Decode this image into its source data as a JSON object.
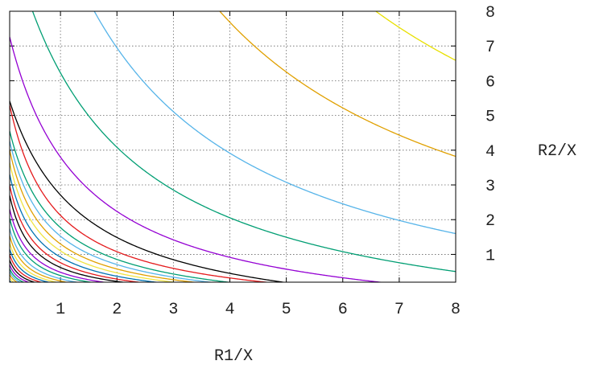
{
  "chart_data": {
    "type": "line",
    "title": "",
    "xlabel": "R1/X",
    "ylabel": "R2/X",
    "xlim": [
      0.1,
      8
    ],
    "ylim": [
      0.2,
      8
    ],
    "x_ticks": [
      "1",
      "2",
      "3",
      "4",
      "5",
      "6",
      "7",
      "8"
    ],
    "y_ticks": [
      "1",
      "2",
      "3",
      "4",
      "5",
      "6",
      "7",
      "8"
    ],
    "grid": true,
    "legend": "none",
    "contour_form": "(x + a) * (y + a) = k",
    "series": [
      {
        "a": 0.8,
        "k": 65.0,
        "color": "#e8e000"
      },
      {
        "a": 1.2,
        "k": 46.2,
        "color": "#e0a000"
      },
      {
        "a": 1.7,
        "k": 32.0,
        "color": "#56b4e9"
      },
      {
        "a": 1.7,
        "k": 21.4,
        "color": "#009e73"
      },
      {
        "a": 1.2,
        "k": 11.0,
        "color": "#9400d3"
      },
      {
        "a": 1.2,
        "k": 8.6,
        "color": "#000000"
      },
      {
        "a": 0.7,
        "k": 4.8,
        "color": "#e41a1c"
      },
      {
        "a": 0.7,
        "k": 4.2,
        "color": "#009e73"
      },
      {
        "a": 0.6,
        "k": 3.4,
        "color": "#56b4e9"
      },
      {
        "a": 0.5,
        "k": 2.7,
        "color": "#e0a000"
      },
      {
        "a": 0.45,
        "k": 2.25,
        "color": "#f0e442"
      },
      {
        "a": 0.4,
        "k": 1.85,
        "color": "#0072b2"
      },
      {
        "a": 0.35,
        "k": 1.5,
        "color": "#e41a1c"
      },
      {
        "a": 0.3,
        "k": 1.2,
        "color": "#000000"
      },
      {
        "a": 0.28,
        "k": 0.98,
        "color": "#9400d3"
      },
      {
        "a": 0.25,
        "k": 0.8,
        "color": "#009e73"
      },
      {
        "a": 0.23,
        "k": 0.65,
        "color": "#56b4e9"
      },
      {
        "a": 0.2,
        "k": 0.52,
        "color": "#e0a000"
      },
      {
        "a": 0.18,
        "k": 0.42,
        "color": "#f0e442"
      },
      {
        "a": 0.16,
        "k": 0.34,
        "color": "#0072b2"
      },
      {
        "a": 0.14,
        "k": 0.27,
        "color": "#e41a1c"
      },
      {
        "a": 0.12,
        "k": 0.21,
        "color": "#000000"
      },
      {
        "a": 0.1,
        "k": 0.16,
        "color": "#9400d3"
      },
      {
        "a": 0.08,
        "k": 0.12,
        "color": "#009e73"
      },
      {
        "a": 0.06,
        "k": 0.09,
        "color": "#56b4e9"
      },
      {
        "a": 0.05,
        "k": 0.07,
        "color": "#e0a000"
      },
      {
        "a": 0.04,
        "k": 0.05,
        "color": "#f0e442"
      },
      {
        "a": 0.03,
        "k": 0.035,
        "color": "#0072b2"
      },
      {
        "a": 0.02,
        "k": 0.025,
        "color": "#e41a1c"
      },
      {
        "a": 0.015,
        "k": 0.018,
        "color": "#000000"
      }
    ]
  }
}
